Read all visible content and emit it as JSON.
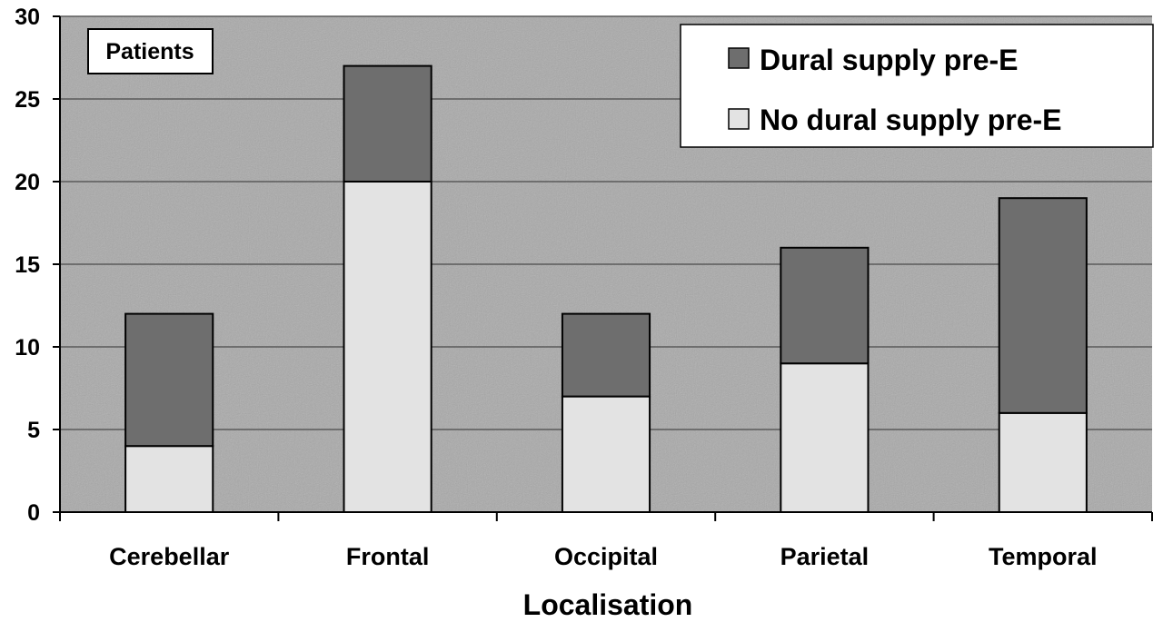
{
  "chart_data": {
    "type": "bar",
    "stacked": true,
    "categories": [
      "Cerebellar",
      "Frontal",
      "Occipital",
      "Parietal",
      "Temporal"
    ],
    "series": [
      {
        "name": "No dural supply pre-E",
        "values": [
          4,
          20,
          7,
          9,
          6
        ],
        "color": "#e3e3e3"
      },
      {
        "name": "Dural supply pre-E",
        "values": [
          8,
          7,
          5,
          7,
          13
        ],
        "color": "#6e6e6e"
      }
    ],
    "xlabel": "Localisation",
    "ylabel": "Patients",
    "ylim": [
      0,
      30
    ],
    "yticks": [
      "0",
      "5",
      "10",
      "15",
      "20",
      "25",
      "30"
    ],
    "grid": true,
    "legend_position": "top-right",
    "plot_background": "#a9a9a9"
  }
}
